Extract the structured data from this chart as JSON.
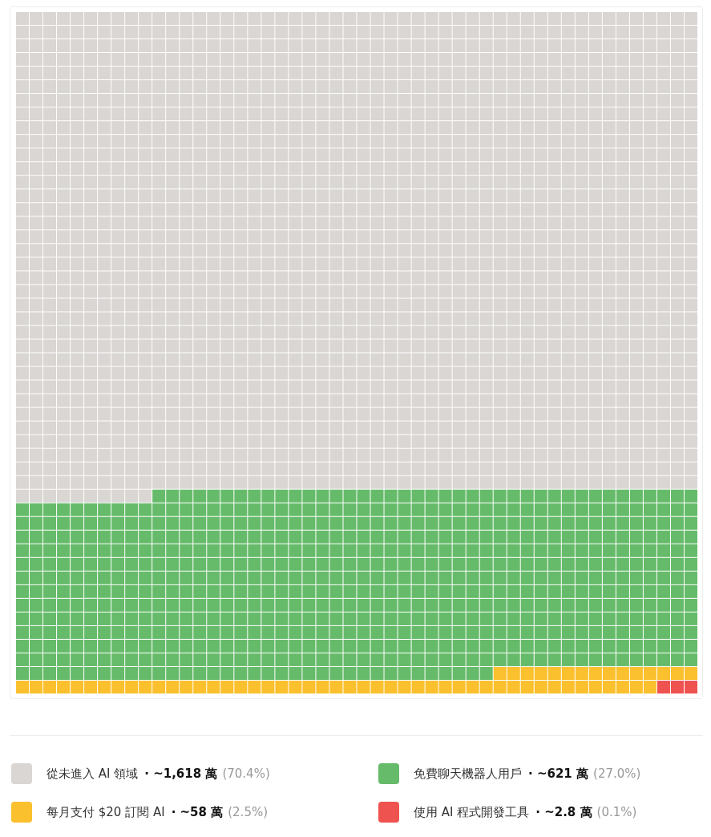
{
  "chart_data": {
    "type": "other",
    "categories": [
      "從未進入 AI 領域",
      "免費聊天機器人用戶",
      "每月支付 $20 訂閱 AI",
      "使用 AI 程式開發工具"
    ],
    "values": [
      70.4,
      27.0,
      2.5,
      0.1
    ],
    "value_labels": [
      "· ~1,618 萬 (70.4%)",
      "· ~621 萬 (27.0%)",
      "· ~58 萬 (2.5%)",
      "· ~2.8 萬 (0.1%)"
    ],
    "colors": [
      "#d9d6d3",
      "#66bb6a",
      "#fbc02d",
      "#ef5350"
    ]
  }
}
